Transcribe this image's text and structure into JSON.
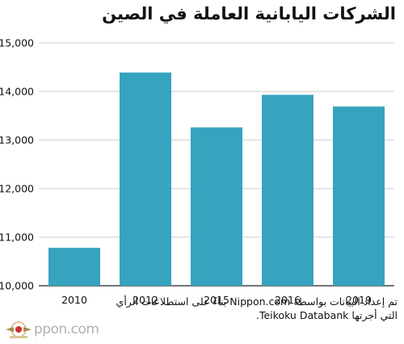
{
  "chart_data": {
    "type": "bar",
    "title": "الشركات اليابانية العاملة في الصين",
    "categories": [
      "2010",
      "2012",
      "2015",
      "2016",
      "2019"
    ],
    "values": [
      10780,
      14390,
      13260,
      13930,
      13690
    ],
    "ylim": [
      10000,
      15000
    ],
    "y_ticks": [
      "10,000",
      "11,000",
      "12,000",
      "13,000",
      "14,000",
      "15,000"
    ],
    "y_tick_values": [
      10000,
      11000,
      12000,
      13000,
      14000,
      15000
    ],
    "bar_color": "#36a3bf",
    "grid": true,
    "xlabel": "",
    "ylabel": ""
  },
  "footer": {
    "source": "تم إعداد البيانات بواسطة Nippon.com بناءً على استطلاعات الرأي التي أجرتها Teikoku Databank."
  },
  "logo": {
    "text": "ppon.com"
  },
  "colors": {
    "bar": "#36a3bf",
    "grid": "#cccccc",
    "axis": "#222222",
    "text": "#111111"
  }
}
